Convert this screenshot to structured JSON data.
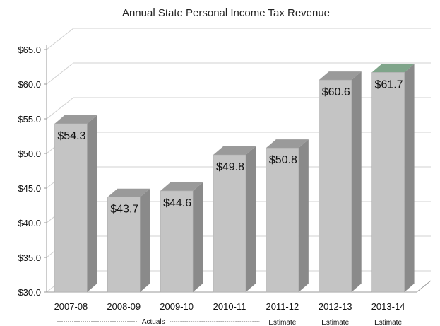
{
  "chart_data": {
    "type": "bar",
    "title": "Annual State Personal Income Tax Revenue",
    "xlabel": "",
    "ylabel": "",
    "categories": [
      "2007-08",
      "2008-09",
      "2009-10",
      "2010-11",
      "2011-12",
      "2012-13",
      "2013-14"
    ],
    "values": [
      54.3,
      43.7,
      44.6,
      49.8,
      50.8,
      60.6,
      61.7
    ],
    "data_labels": [
      "$54.3",
      "$43.7",
      "$44.6",
      "$49.8",
      "$50.8",
      "$60.6",
      "$61.7"
    ],
    "ylim": [
      30.0,
      65.0
    ],
    "yticks": [
      30.0,
      35.0,
      40.0,
      45.0,
      50.0,
      55.0,
      60.0,
      65.0
    ],
    "ytick_labels": [
      "$30.0",
      "$35.0",
      "$40.0",
      "$45.0",
      "$50.0",
      "$55.0",
      "$60.0",
      "$65.0"
    ],
    "annotations": {
      "actuals": "Actuals",
      "estimate_labels": [
        "Estimate",
        "Estimate",
        "Estimate"
      ]
    },
    "grid": true,
    "legend": "none",
    "bar_style": "3d",
    "colors": {
      "bar_front": "#c4c4c4",
      "bar_side": "#8a8a8a",
      "bar_top": "#9a9a9a",
      "last_top": "#7fa58a",
      "grid": "#d0d0d0",
      "axis": "#999999"
    }
  }
}
